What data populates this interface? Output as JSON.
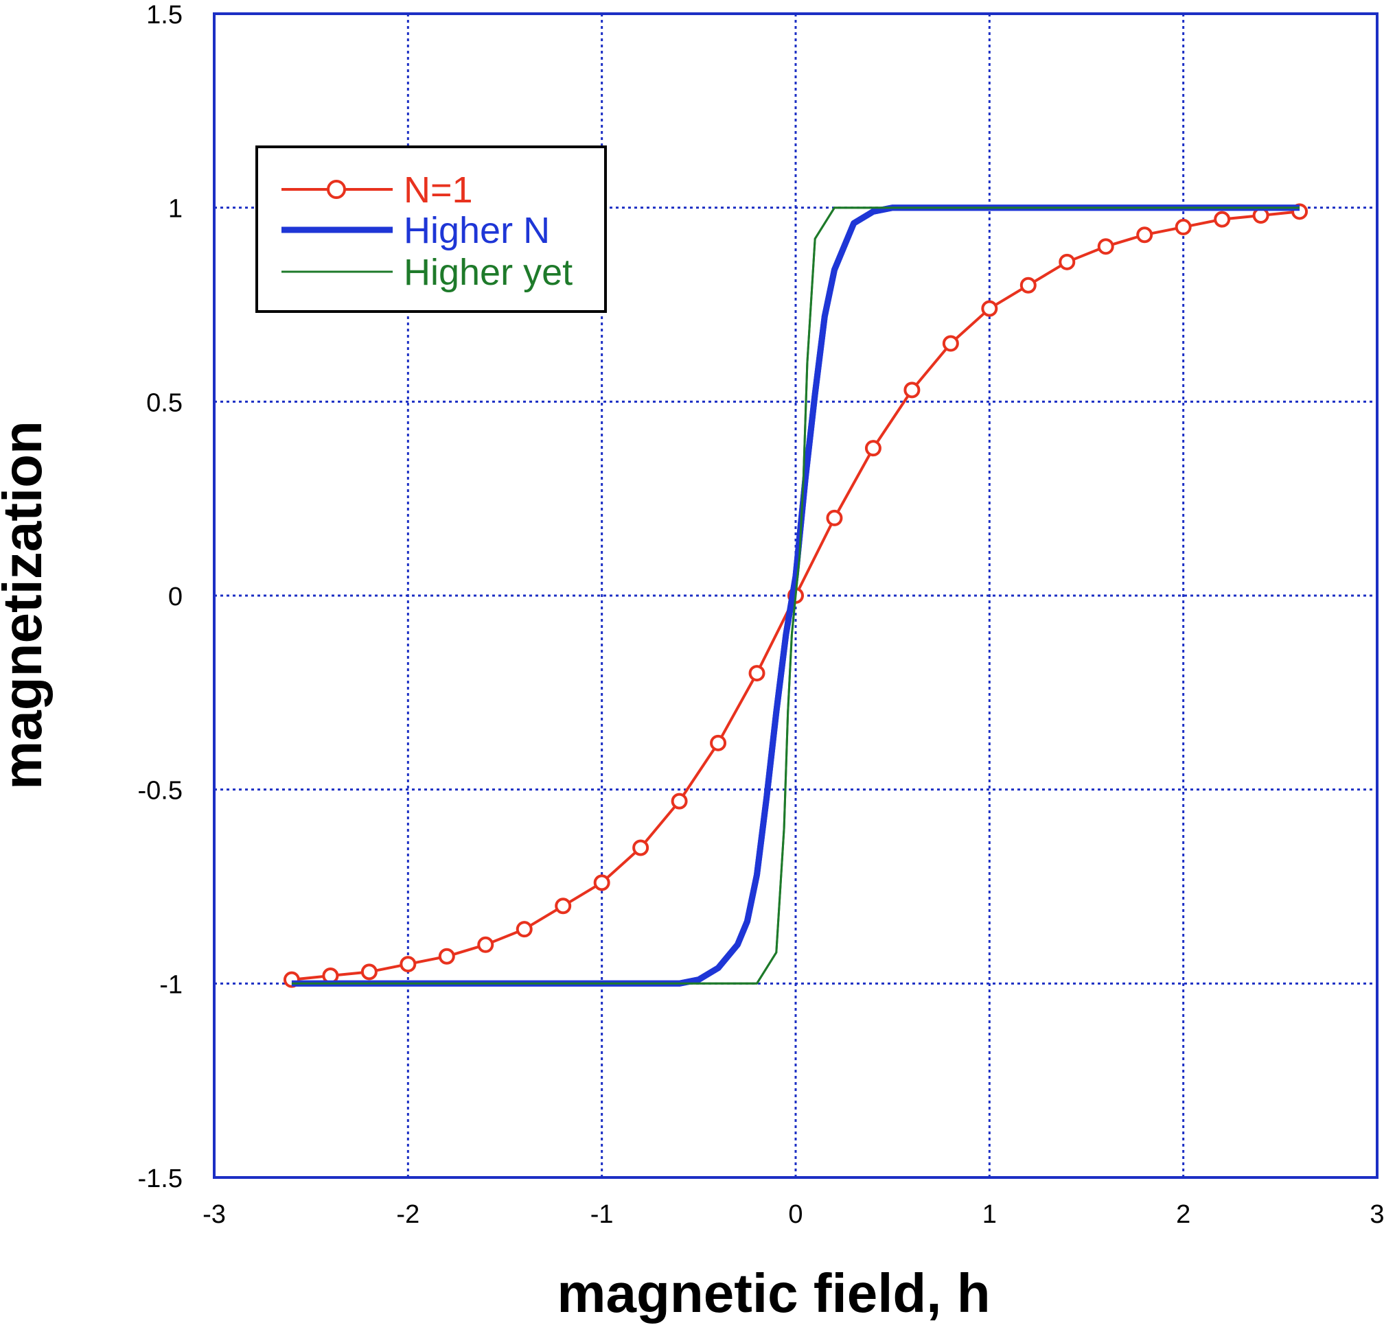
{
  "chart_data": {
    "type": "line",
    "xlabel": "magnetic field, h",
    "ylabel": "magnetization",
    "xlim": [
      -3,
      3
    ],
    "ylim": [
      -1.5,
      1.5
    ],
    "x_ticks": [
      -3,
      -2,
      -1,
      0,
      1,
      2,
      3
    ],
    "y_ticks": [
      -1.5,
      -1,
      -0.5,
      0,
      0.5,
      1,
      1.5
    ],
    "x_tick_labels": [
      "-3",
      "-2",
      "-1",
      "0",
      "1",
      "2",
      "3"
    ],
    "y_tick_labels": [
      "-1.5",
      "-1",
      "-0.5",
      "0",
      "0.5",
      "1",
      "1.5"
    ],
    "grid": true,
    "legend_position": "top-left",
    "colors": {
      "frame": "#1c2fc4",
      "grid": "#1c2fc4"
    },
    "series": [
      {
        "name": "N=1",
        "color": "#e8321e",
        "marker": "circle",
        "x": [
          -2.6,
          -2.4,
          -2.2,
          -2.0,
          -1.8,
          -1.6,
          -1.4,
          -1.2,
          -1.0,
          -0.8,
          -0.6,
          -0.4,
          -0.2,
          0.0,
          0.2,
          0.4,
          0.6,
          0.8,
          1.0,
          1.2,
          1.4,
          1.6,
          1.8,
          2.0,
          2.2,
          2.4,
          2.6
        ],
        "y": [
          -0.99,
          -0.98,
          -0.97,
          -0.95,
          -0.93,
          -0.9,
          -0.86,
          -0.8,
          -0.74,
          -0.65,
          -0.53,
          -0.38,
          -0.2,
          0.0,
          0.2,
          0.38,
          0.53,
          0.65,
          0.74,
          0.8,
          0.86,
          0.9,
          0.93,
          0.95,
          0.97,
          0.98,
          0.99
        ]
      },
      {
        "name": "Higher N",
        "color": "#1e36d6",
        "x": [
          -2.6,
          -0.6,
          -0.5,
          -0.4,
          -0.3,
          -0.25,
          -0.2,
          -0.15,
          -0.1,
          -0.05,
          0.0,
          0.05,
          0.1,
          0.15,
          0.2,
          0.25,
          0.3,
          0.4,
          0.5,
          0.6,
          2.6
        ],
        "y": [
          -1.0,
          -1.0,
          -0.99,
          -0.96,
          -0.9,
          -0.84,
          -0.72,
          -0.52,
          -0.3,
          -0.1,
          0.05,
          0.3,
          0.52,
          0.72,
          0.84,
          0.9,
          0.96,
          0.99,
          1.0,
          1.0,
          1.0
        ]
      },
      {
        "name": "Higher yet",
        "color": "#1e7a2a",
        "x": [
          -2.6,
          -0.2,
          -0.1,
          -0.06,
          -0.04,
          -0.02,
          0.0,
          0.02,
          0.04,
          0.06,
          0.1,
          0.2,
          2.6
        ],
        "y": [
          -1.0,
          -1.0,
          -0.92,
          -0.6,
          -0.3,
          -0.1,
          0.0,
          0.1,
          0.3,
          0.6,
          0.92,
          1.0,
          1.0
        ]
      }
    ]
  }
}
